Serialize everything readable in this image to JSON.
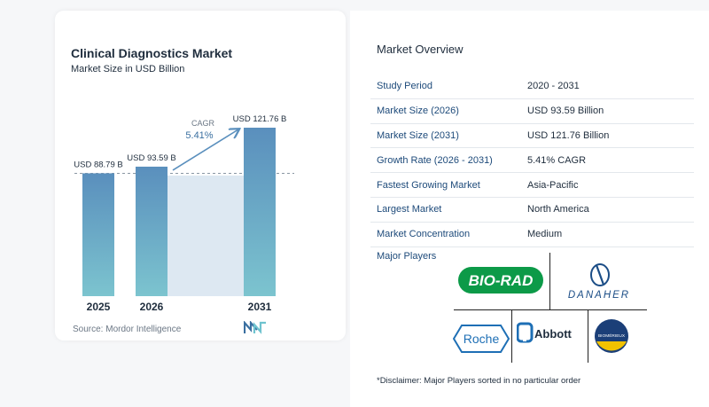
{
  "chart": {
    "title": "Clinical Diagnostics Market",
    "subtitle": "Market Size in USD Billion",
    "cagr_label": "CAGR",
    "cagr_value": "5.41%",
    "source": "Source:  Mordor Intelligence"
  },
  "chart_data": {
    "type": "bar",
    "title": "Clinical Diagnostics Market",
    "subtitle": "Market Size in USD Billion",
    "categories": [
      "2025",
      "2026",
      "2031"
    ],
    "values": [
      88.79,
      93.59,
      121.76
    ],
    "data_labels": [
      "USD 88.79 B",
      "USD 93.59 B",
      "USD 121.76 B"
    ],
    "annotation": "CAGR 5.41%",
    "grid": false,
    "colors": {
      "bar_top": "#5a8fbd",
      "bar_bottom": "#7cc4cf",
      "shade": "#dde8f2"
    }
  },
  "overview": {
    "title": "Market Overview",
    "rows": [
      {
        "label": "Study Period",
        "value": "2020 - 2031"
      },
      {
        "label": "Market Size (2026)",
        "value": "USD 93.59 Billion"
      },
      {
        "label": "Market Size (2031)",
        "value": "USD 121.76 Billion"
      },
      {
        "label": "Growth Rate (2026 - 2031)",
        "value": "5.41% CAGR"
      },
      {
        "label": "Fastest Growing Market",
        "value": "Asia-Pacific"
      },
      {
        "label": "Largest Market",
        "value": "North America"
      },
      {
        "label": "Market Concentration",
        "value": "Medium"
      }
    ]
  },
  "players": {
    "title": "Major Players",
    "logos": [
      "BIO-RAD",
      "DANAHER",
      "Roche",
      "Abbott",
      "BIOMÉRIEUX"
    ]
  },
  "disclaimer": "*Disclaimer: Major Players sorted in no particular order",
  "colors": {
    "accent": "#1d4a7a",
    "bio_rad_green": "#0c9a48",
    "roche_blue": "#1e6fb5",
    "danaher_blue": "#1b4d86"
  }
}
